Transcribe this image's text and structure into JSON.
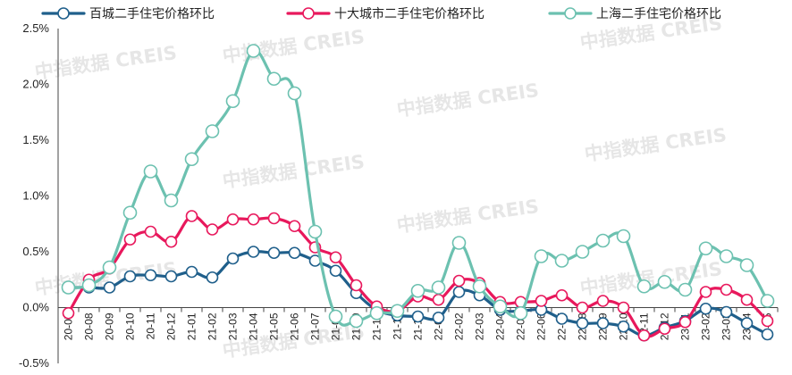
{
  "chart_data": {
    "type": "line",
    "title": "",
    "xlabel": "",
    "ylabel": "",
    "ylim": [
      -0.5,
      2.5
    ],
    "yticks": [
      -0.5,
      0.0,
      0.5,
      1.0,
      1.5,
      2.0,
      2.5
    ],
    "ytick_labels": [
      "-0.5%",
      "0.0%",
      "0.5%",
      "1.0%",
      "1.5%",
      "2.0%",
      "2.5%"
    ],
    "grid": false,
    "legend_position": "top",
    "categories": [
      "20-07",
      "20-08",
      "20-09",
      "20-10",
      "20-11",
      "20-12",
      "21-01",
      "21-02",
      "21-03",
      "21-04",
      "21-05",
      "21-06",
      "21-07",
      "21-08",
      "21-09",
      "21-10",
      "21-11",
      "21-12",
      "22-01",
      "22-02",
      "22-03",
      "22-04",
      "22-05",
      "22-06",
      "22-07",
      "22-08",
      "22-09",
      "22-10",
      "22-11",
      "22-12",
      "23-01",
      "23-02",
      "23-03",
      "23-04",
      "23-05"
    ],
    "series": [
      {
        "name": "百城二手住宅价格环比",
        "color": "#1f5f8b",
        "values": [
          0.18,
          0.18,
          0.18,
          0.28,
          0.29,
          0.28,
          0.32,
          0.27,
          0.44,
          0.5,
          0.49,
          0.49,
          0.42,
          0.33,
          0.13,
          -0.02,
          -0.07,
          -0.08,
          -0.09,
          0.14,
          0.11,
          -0.02,
          -0.03,
          -0.02,
          -0.1,
          -0.14,
          -0.14,
          -0.17,
          -0.25,
          -0.18,
          -0.12,
          -0.01,
          -0.04,
          -0.14,
          -0.24
        ]
      },
      {
        "name": "十大城市二手住宅价格环比",
        "color": "#e8185c",
        "values": [
          -0.05,
          0.25,
          0.35,
          0.61,
          0.68,
          0.59,
          0.82,
          0.7,
          0.79,
          0.79,
          0.8,
          0.73,
          0.54,
          0.45,
          0.2,
          0.01,
          -0.03,
          0.1,
          0.07,
          0.24,
          0.22,
          0.05,
          0.05,
          0.06,
          0.11,
          0.0,
          0.06,
          0.0,
          -0.25,
          -0.19,
          -0.13,
          0.14,
          0.16,
          0.07,
          -0.12
        ]
      },
      {
        "name": "上海二手住宅价格环比",
        "color": "#6cc1b0",
        "values": [
          0.18,
          0.2,
          0.36,
          0.85,
          1.22,
          0.96,
          1.33,
          1.58,
          1.85,
          2.3,
          2.05,
          1.92,
          0.68,
          -0.08,
          -0.12,
          -0.05,
          -0.03,
          0.15,
          0.18,
          0.58,
          0.19,
          0.01,
          -0.05,
          0.46,
          0.42,
          0.5,
          0.6,
          0.64,
          0.19,
          0.23,
          0.16,
          0.53,
          0.46,
          0.38,
          0.06
        ]
      }
    ]
  },
  "watermark_text": "中指数据 CREIS"
}
